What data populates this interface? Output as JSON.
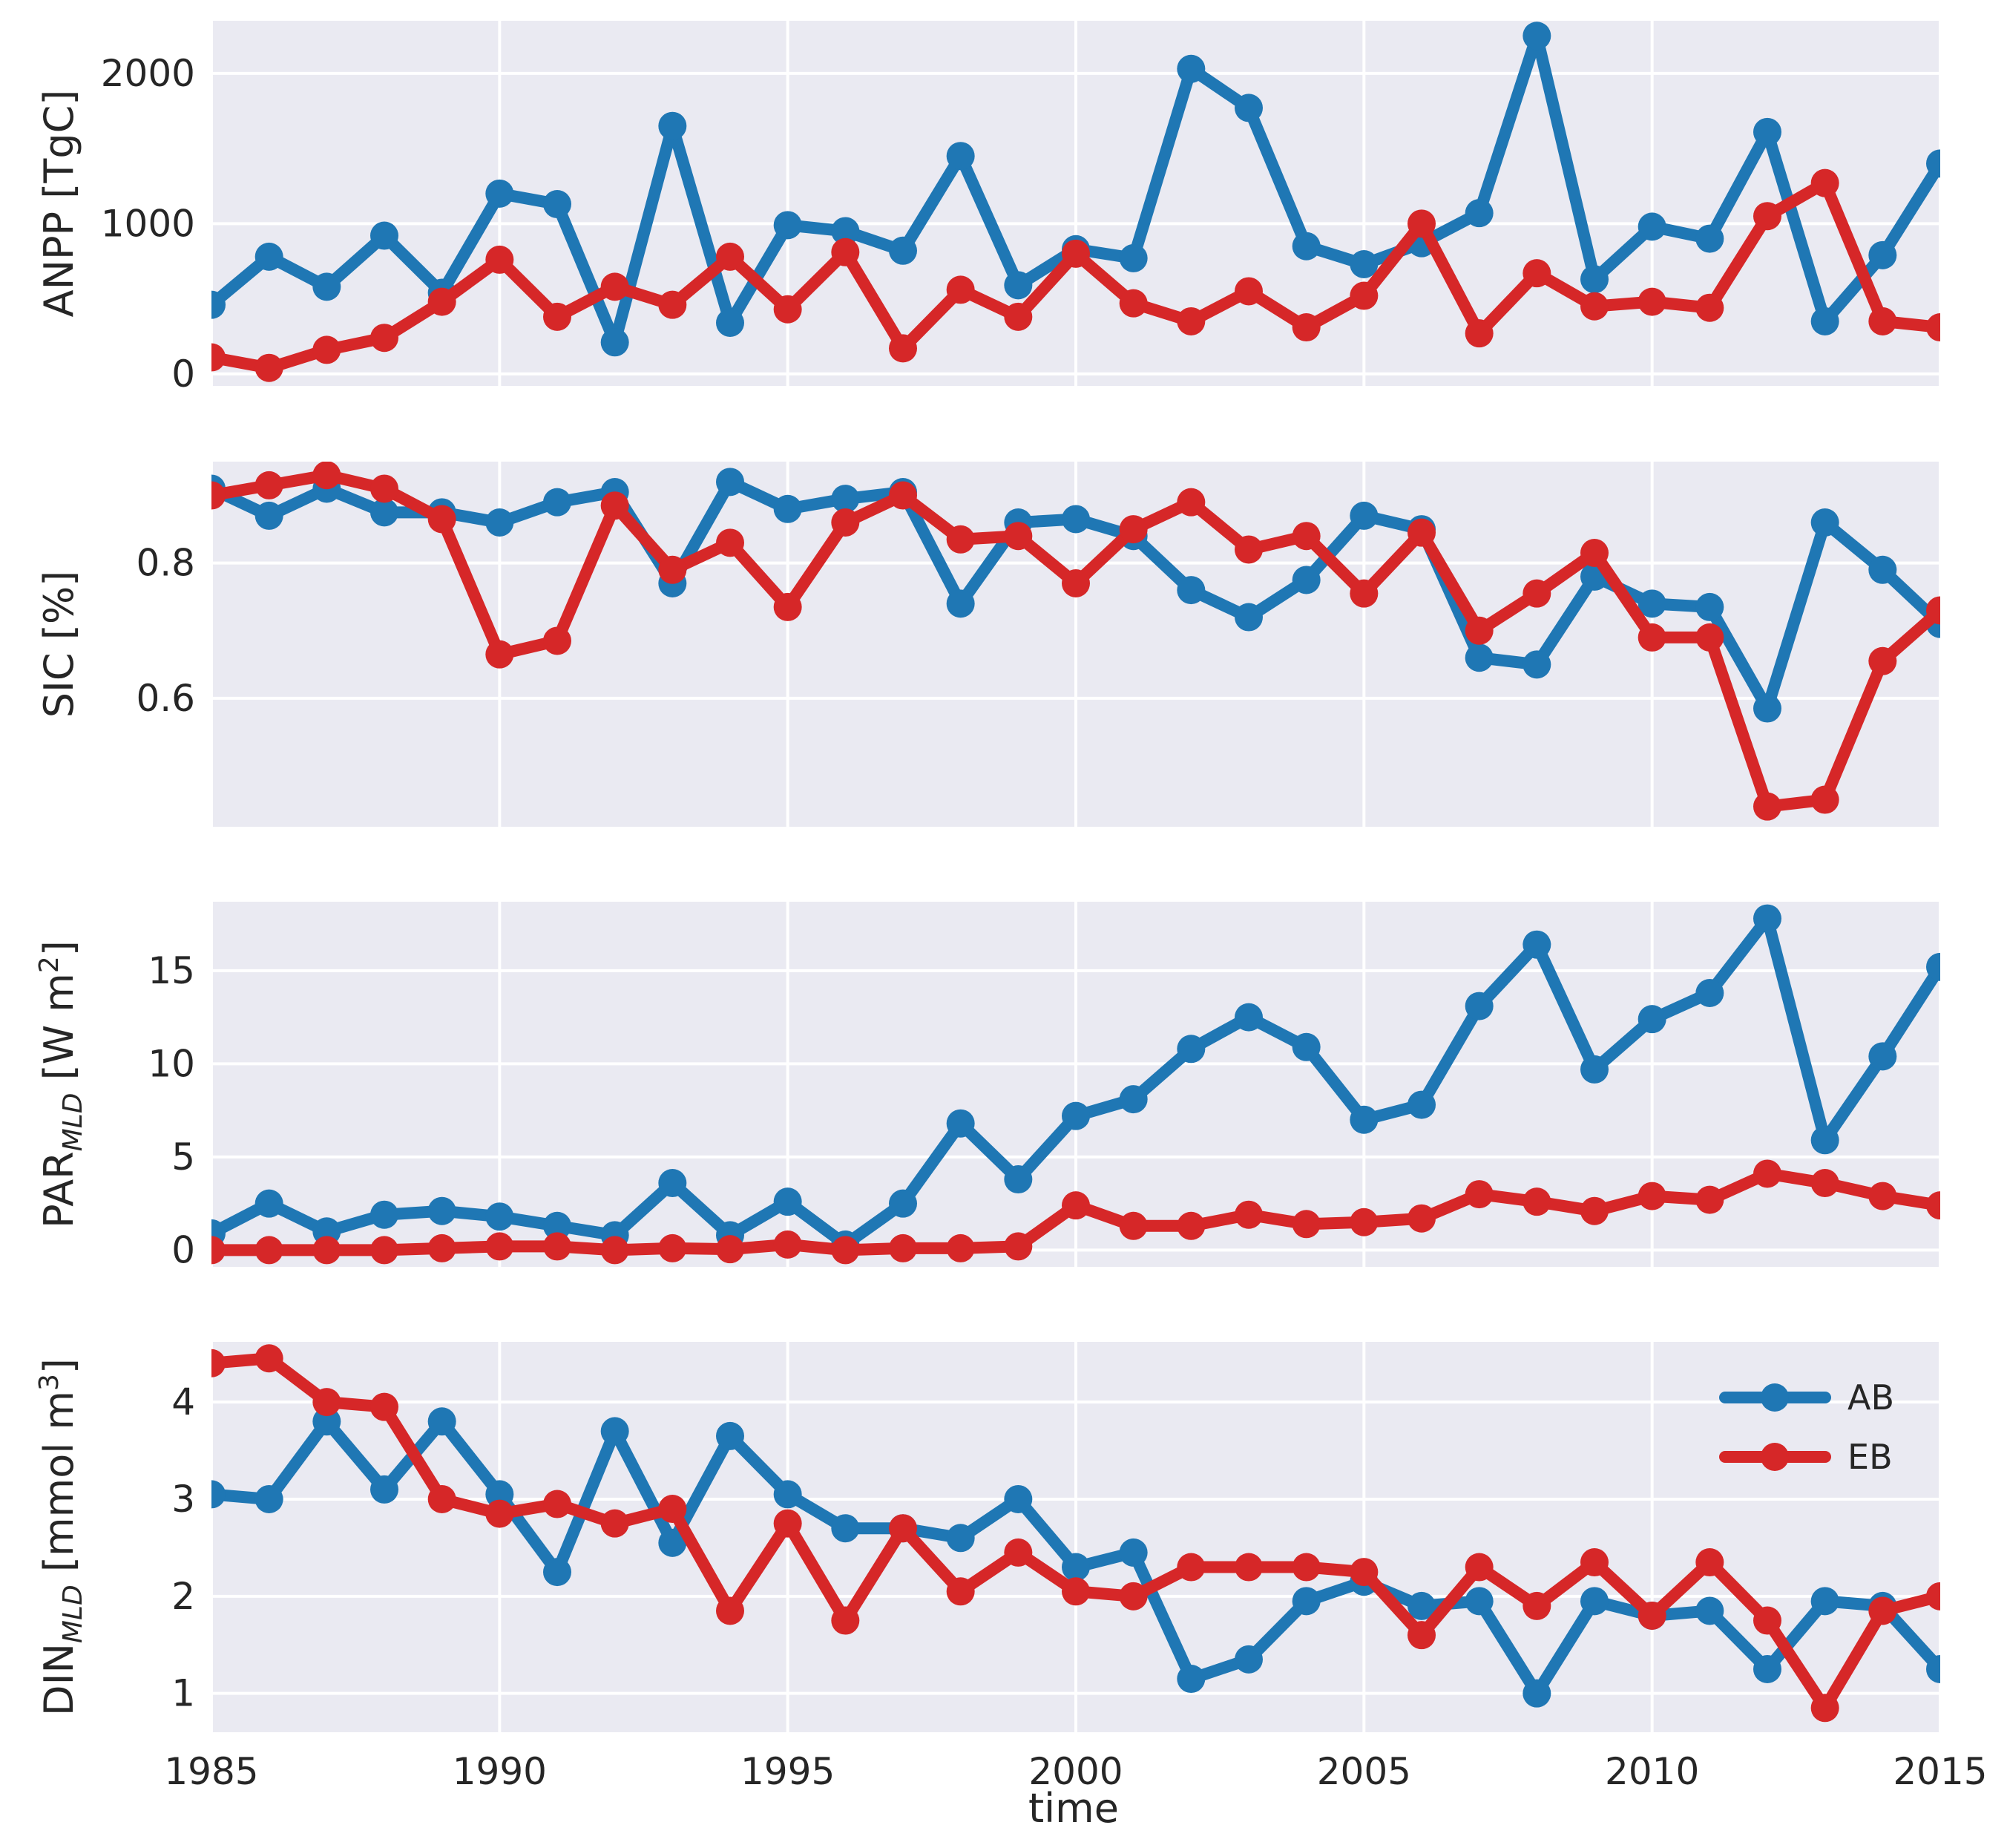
{
  "chart_data": {
    "type": "line",
    "xlabel": "time",
    "xlim": [
      1985,
      2015
    ],
    "x_ticks": [
      1985,
      1990,
      1995,
      2000,
      2005,
      2010,
      2015
    ],
    "x_tick_labels": [
      "1985",
      "1990",
      "1995",
      "2000",
      "2005",
      "2010",
      "2015"
    ],
    "x": [
      1985,
      1986,
      1987,
      1988,
      1989,
      1990,
      1991,
      1992,
      1993,
      1994,
      1995,
      1996,
      1997,
      1998,
      1999,
      2000,
      2001,
      2002,
      2003,
      2004,
      2005,
      2006,
      2007,
      2008,
      2009,
      2010,
      2011,
      2012,
      2013,
      2014,
      2015
    ],
    "legend": {
      "placement": "upper-right of bottom panel",
      "entries": [
        {
          "name": "AB",
          "color": "#1f77b4"
        },
        {
          "name": "EB",
          "color": "#d62728"
        }
      ]
    },
    "grid": true,
    "background": "#eaeaf2",
    "panels": [
      {
        "ylabel": "ANPP [TgC]",
        "ylim": [
          -80,
          2350
        ],
        "y_ticks": [
          0,
          1000,
          2000
        ],
        "y_tick_labels": [
          "0",
          "1000",
          "2000"
        ],
        "series": [
          {
            "name": "AB",
            "color": "#1f77b4",
            "values": [
              460,
              780,
              580,
              920,
              540,
              1200,
              1130,
              210,
              1650,
              340,
              990,
              950,
              820,
              1450,
              590,
              830,
              770,
              2030,
              1770,
              850,
              730,
              870,
              1070,
              2250,
              630,
              980,
              900,
              1610,
              350,
              790,
              1400
            ]
          },
          {
            "name": "EB",
            "color": "#d62728",
            "values": [
              110,
              40,
              160,
              240,
              480,
              760,
              380,
              580,
              460,
              780,
              430,
              810,
              170,
              560,
              380,
              800,
              470,
              350,
              550,
              310,
              520,
              1000,
              270,
              670,
              450,
              480,
              440,
              1050,
              1270,
              350,
              310
            ]
          }
        ]
      },
      {
        "ylabel": "SIC [%]",
        "ylim": [
          0.41,
          0.95
        ],
        "y_ticks": [
          0.6,
          0.8
        ],
        "y_tick_labels": [
          "0.6",
          "0.8"
        ],
        "series": [
          {
            "name": "AB",
            "color": "#1f77b4",
            "values": [
              0.91,
              0.87,
              0.91,
              0.875,
              0.875,
              0.86,
              0.89,
              0.905,
              0.77,
              0.92,
              0.88,
              0.895,
              0.905,
              0.74,
              0.86,
              0.865,
              0.84,
              0.76,
              0.72,
              0.775,
              0.87,
              0.85,
              0.66,
              0.65,
              0.78,
              0.74,
              0.735,
              0.585,
              0.86,
              0.79,
              0.71
            ]
          },
          {
            "name": "EB",
            "color": "#d62728",
            "values": [
              0.9,
              0.915,
              0.93,
              0.91,
              0.865,
              0.665,
              0.685,
              0.885,
              0.79,
              0.83,
              0.735,
              0.86,
              0.9,
              0.835,
              0.84,
              0.77,
              0.85,
              0.89,
              0.82,
              0.84,
              0.755,
              0.845,
              0.7,
              0.755,
              0.815,
              0.69,
              0.69,
              0.44,
              0.45,
              0.655,
              0.73
            ]
          }
        ]
      },
      {
        "ylabel": "PAR",
        "ylabel_sub": "MLD",
        "ylabel_rest": " [W m",
        "ylabel_sup": "2",
        "ylabel_end": "]",
        "ylim": [
          -0.9,
          18.7
        ],
        "y_ticks": [
          0,
          5,
          10,
          15
        ],
        "y_tick_labels": [
          "0",
          "5",
          "10",
          "15"
        ],
        "series": [
          {
            "name": "AB",
            "color": "#1f77b4",
            "values": [
              0.9,
              2.5,
              1.0,
              1.9,
              2.1,
              1.8,
              1.3,
              0.8,
              3.6,
              0.8,
              2.6,
              0.3,
              2.5,
              6.8,
              3.8,
              7.2,
              8.1,
              10.8,
              12.5,
              10.9,
              7.0,
              7.8,
              13.1,
              16.4,
              9.7,
              12.4,
              13.8,
              17.8,
              5.9,
              10.4,
              15.2
            ]
          },
          {
            "name": "EB",
            "color": "#d62728",
            "values": [
              0.0,
              0.0,
              0.0,
              0.0,
              0.1,
              0.2,
              0.2,
              0.0,
              0.1,
              0.05,
              0.3,
              0.0,
              0.1,
              0.1,
              0.2,
              2.4,
              1.3,
              1.3,
              1.9,
              1.4,
              1.5,
              1.7,
              3.0,
              2.6,
              2.1,
              2.9,
              2.7,
              4.1,
              3.6,
              2.9,
              2.4
            ]
          }
        ]
      },
      {
        "ylabel": "DIN",
        "ylabel_sub": "MLD",
        "ylabel_rest": " [mmol m",
        "ylabel_sup": "3",
        "ylabel_end": "]",
        "ylim": [
          0.6,
          4.62
        ],
        "y_ticks": [
          1,
          2,
          3,
          4
        ],
        "y_tick_labels": [
          "1",
          "2",
          "3",
          "4"
        ],
        "series": [
          {
            "name": "AB",
            "color": "#1f77b4",
            "values": [
              3.05,
              3.0,
              3.8,
              3.1,
              3.8,
              3.05,
              2.25,
              3.7,
              2.55,
              3.65,
              3.05,
              2.7,
              2.7,
              2.6,
              3.0,
              2.3,
              2.45,
              1.15,
              1.35,
              1.95,
              2.15,
              1.9,
              1.95,
              1.0,
              1.95,
              1.8,
              1.85,
              1.25,
              1.95,
              1.9,
              1.25
            ]
          },
          {
            "name": "EB",
            "color": "#d62728",
            "values": [
              4.4,
              4.45,
              4.0,
              3.95,
              3.0,
              2.85,
              2.95,
              2.75,
              2.9,
              1.85,
              2.75,
              1.75,
              2.7,
              2.05,
              2.45,
              2.05,
              2.0,
              2.3,
              2.3,
              2.3,
              2.25,
              1.6,
              2.3,
              1.9,
              2.35,
              1.8,
              2.35,
              1.75,
              0.85,
              1.85,
              2.0
            ]
          }
        ]
      }
    ]
  }
}
